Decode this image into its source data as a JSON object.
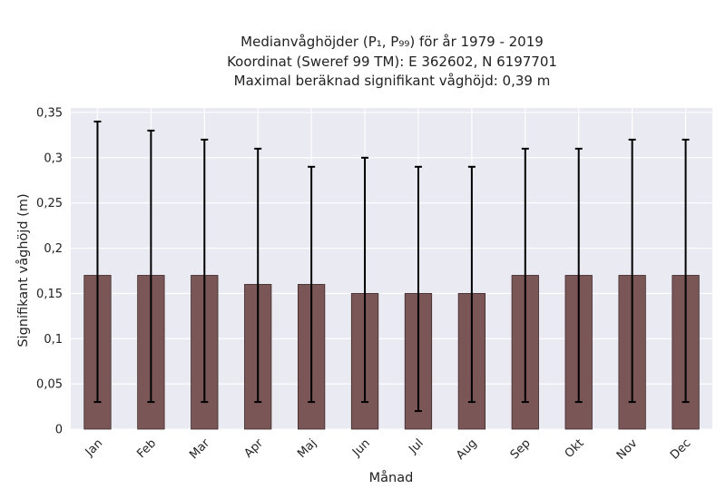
{
  "chart_data": {
    "type": "bar",
    "title_lines": [
      "Medianvåghöjder (P₁, P₉₉) för år 1979 - 2019",
      "Koordinat (Sweref 99 TM): E 362602, N 6197701",
      "Maximal beräknad signifikant våghöjd: 0,39 m"
    ],
    "xlabel": "Månad",
    "ylabel": "Signifikant våghöjd (m)",
    "categories": [
      "Jan",
      "Feb",
      "Mar",
      "Apr",
      "Maj",
      "Jun",
      "Jul",
      "Aug",
      "Sep",
      "Okt",
      "Nov",
      "Dec"
    ],
    "series": [
      {
        "values": [
          0.17,
          0.17,
          0.17,
          0.16,
          0.16,
          0.15,
          0.15,
          0.15,
          0.17,
          0.17,
          0.17,
          0.17
        ],
        "p1": [
          0.03,
          0.03,
          0.03,
          0.03,
          0.03,
          0.03,
          0.02,
          0.03,
          0.03,
          0.03,
          0.03,
          0.03
        ],
        "p99": [
          0.34,
          0.33,
          0.32,
          0.31,
          0.29,
          0.3,
          0.29,
          0.29,
          0.31,
          0.31,
          0.32,
          0.32
        ],
        "color": "#7a5656"
      }
    ],
    "yticks": [
      0,
      0.05,
      0.1,
      0.15,
      0.2,
      0.25,
      0.3,
      0.35
    ],
    "ytick_labels": [
      "0",
      "0,05",
      "0,1",
      "0,15",
      "0,2",
      "0,25",
      "0,3",
      "0,35"
    ],
    "ylim": [
      0,
      0.355
    ],
    "grid": true,
    "colors": {
      "plot_background": "#eaeaf2",
      "grid": "#ffffff",
      "bar_fill": "#7a5656",
      "bar_edge": "#3d2a2a",
      "error_bar": "#000000"
    }
  }
}
